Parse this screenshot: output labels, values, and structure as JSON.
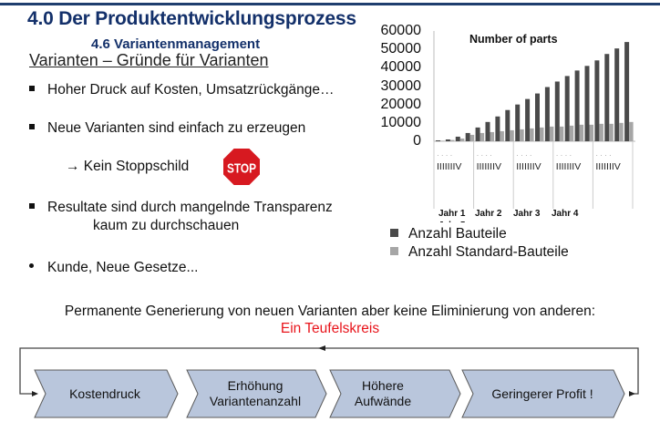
{
  "slide": {
    "title": "4.0 Der Produktentwicklungsprozess",
    "subtitle": "4.6 Variantenmanagement",
    "heading": "Varianten – Gründe für Varianten",
    "accent_color": "#13306a"
  },
  "bullets": [
    {
      "text": "Hoher Druck auf Kosten, Umsatzrückgänge…"
    },
    {
      "text": "Neue Varianten sind einfach zu erzeugen"
    },
    {
      "text": "→ Kein Stoppschild",
      "icon": "stop-sign-icon",
      "icon_text": "STOP"
    },
    {
      "text": "Resultate sind durch mangelnde Transparenz",
      "continuation": "kaum zu durchschauen"
    },
    {
      "text": "Kunde, Neue Gesetze..."
    }
  ],
  "chart_data": {
    "type": "bar",
    "title": "Number of parts",
    "xlabel": "",
    "ylabel": "",
    "ylim": [
      0,
      60000
    ],
    "yticks": [
      "60000",
      "50000",
      "40000",
      "30000",
      "20000",
      "10000",
      "0"
    ],
    "quarter_labels": [
      "I",
      "II",
      "III",
      "IV"
    ],
    "year_labels": [
      "Jahr 1",
      "Jahr 2",
      "Jahr 3",
      "Jahr 4",
      "Jahr 5"
    ],
    "categories": [
      "J1 I",
      "J1 II",
      "J1 III",
      "J1 IV",
      "J2 I",
      "J2 II",
      "J2 III",
      "J2 IV",
      "J3 I",
      "J3 II",
      "J3 III",
      "J3 IV",
      "J4 I",
      "J4 II",
      "J4 III",
      "J4 IV",
      "J5 I",
      "J5 II",
      "J5 III",
      "J5 IV"
    ],
    "series": [
      {
        "name": "Anzahl Bauteile",
        "color": "#4a4a4a",
        "values": [
          500,
          1000,
          2500,
          4500,
          7500,
          10500,
          13500,
          17000,
          20000,
          23000,
          26000,
          29500,
          32500,
          35500,
          38500,
          41000,
          44000,
          47500,
          50500,
          54000
        ]
      },
      {
        "name": "Anzahl Standard-Bauteile",
        "color": "#a6a6a6",
        "values": [
          300,
          700,
          1500,
          3500,
          4500,
          5000,
          5500,
          6000,
          6500,
          7000,
          7500,
          8000,
          8000,
          8500,
          9000,
          9000,
          9500,
          9500,
          10000,
          10500
        ]
      }
    ],
    "legend_position": "bottom",
    "grid": false
  },
  "summary": {
    "text": "Permanente Generierung von neuen Varianten aber keine Eliminierung von anderen:",
    "highlight": "Ein Teufelskreis",
    "highlight_color": "#e8141b"
  },
  "cycle": {
    "steps": [
      {
        "label": "Kostendruck"
      },
      {
        "label": "Erhöhung\nVariantenanzahl",
        "line1": "Erhöhung",
        "line2": "Variantenanzahl"
      },
      {
        "label": "Höhere\nAufwände",
        "line1": "Höhere",
        "line2": "Aufwände"
      },
      {
        "label": "Geringerer Profit !"
      }
    ],
    "fill_color": "#b9c6dc",
    "stroke_color": "#5a5a5a"
  }
}
